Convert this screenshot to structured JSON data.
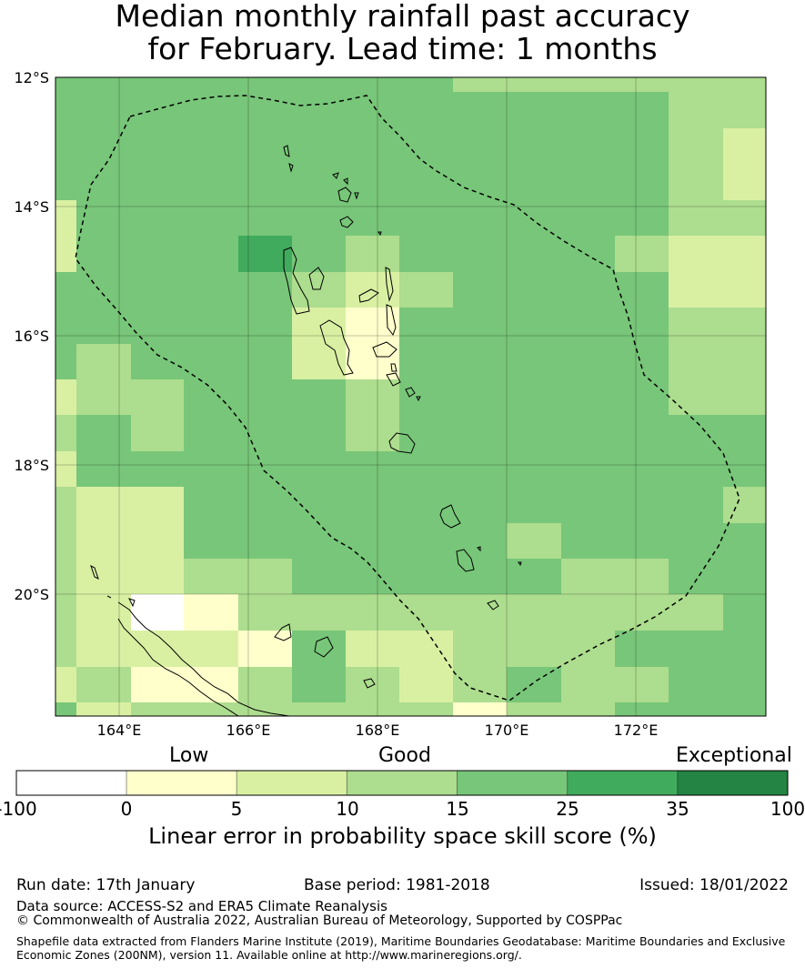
{
  "title": {
    "line1": "Median monthly rainfall past accuracy",
    "line2": "for February. Lead time: 1 months"
  },
  "map": {
    "lat_labels": [
      "12°S",
      "14°S",
      "16°S",
      "18°S",
      "20°S"
    ],
    "lon_labels": [
      "164°E",
      "166°E",
      "168°E",
      "170°E",
      "172°E"
    ],
    "extent": {
      "lon_min": 163.0,
      "lon_max": 174.0,
      "lat_min": -21.9,
      "lat_max": -12.0
    },
    "region": "Vanuatu EEZ"
  },
  "colorbar": {
    "headings": {
      "low": "Low",
      "good": "Good",
      "exceptional": "Exceptional"
    },
    "ticks": [
      "-100",
      "0",
      "5",
      "10",
      "15",
      "25",
      "35",
      "100"
    ],
    "colors": [
      "#ffffff",
      "#ffffcc",
      "#d9f0a3",
      "#addd8e",
      "#78c679",
      "#41ab5d",
      "#238443"
    ],
    "label": "Linear error in probability space skill score (%)"
  },
  "footer": {
    "run_date": "Run date: 17th January",
    "base_period": "Base period: 1981-2018",
    "issued": "Issued: 18/01/2022",
    "data_source": "Data source: ACCESS-S2 and ERA5 Climate Reanalysis",
    "copyright": "© Commonwealth of Australia 2022, Australian Bureau of Meteorology, Supported by COSPPac",
    "shapefile": "Shapefile data extracted from Flanders Marine Institute (2019), Maritime Boundaries Geodatabase: Maritime Boundaries and Exclusive Economic Zones (200NM), version 11. Available online at http://www.marineregions.org/."
  },
  "grid_legend": {
    "G": "#78c679",
    "L": "#addd8e",
    "Y": "#d9f0a3",
    "P": "#ffffcc",
    "W": "#ffffff",
    "D": "#41ab5d"
  },
  "grid_rows": [
    "GGGGGGGGLLLLLL",
    "GGGGGGGGGGGGLL",
    "GGGGGGGGGGGGLY",
    "GGGGGGGGGGGGLY",
    "YGGGGGGGGGGGLL",
    "YGGGDGLGGGGLYY",
    "GGGGGLYLGGGGYY",
    "GGGGGYPGGGGGLL",
    "GLGGGYPGGGGGLL",
    "YLLGGGLGGGGGLL",
    "LGLGGGLGGGGGGG",
    "YGGGGGGGGGGGGG",
    "LYYGGGGGGGGGGL",
    "LYYGGGGGGLGGGG",
    "LYYLLGGGGGLLGG",
    "LYWPLLLLLLLLLG",
    "LYYYPGYYLLLGGG",
    "YLPPLGLYLGLLGG",
    "GYLLLLLLPLLGGG"
  ]
}
